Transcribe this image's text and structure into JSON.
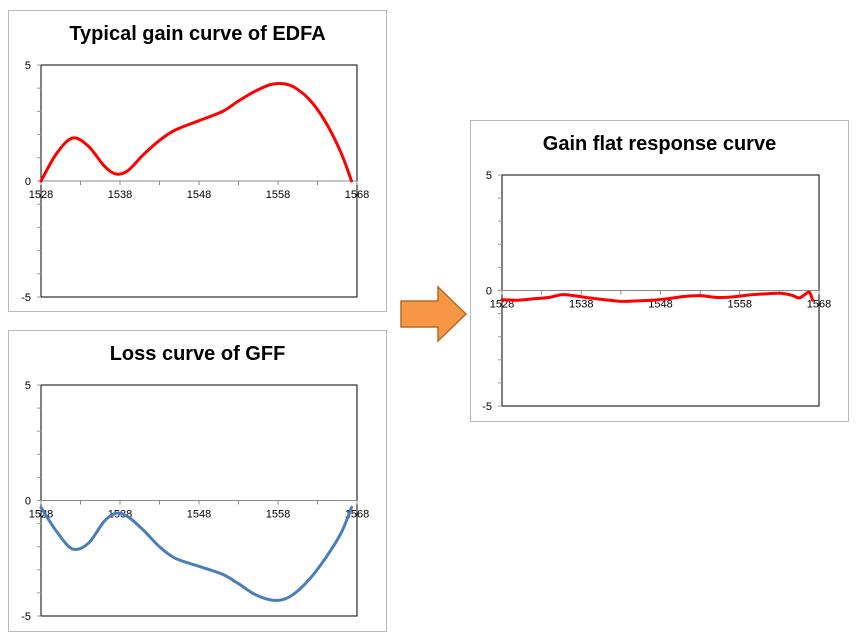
{
  "chart_data": [
    {
      "id": "edfa",
      "type": "line",
      "title": "Typical gain curve of EDFA",
      "xlim": [
        1528,
        1568
      ],
      "ylim": [
        -5,
        5
      ],
      "x_ticks": [
        1528,
        1538,
        1548,
        1558,
        1568
      ],
      "y_ticks": [
        5,
        0,
        -5
      ],
      "grid": false,
      "series": [
        {
          "color": "#ff0000",
          "x": [
            1528,
            1530,
            1532,
            1534,
            1536,
            1537.5,
            1539,
            1541,
            1543,
            1545,
            1548,
            1551,
            1553,
            1555,
            1557,
            1558.5,
            1560,
            1562,
            1564,
            1566,
            1567.3
          ],
          "y": [
            0,
            1.2,
            1.85,
            1.5,
            0.65,
            0.3,
            0.45,
            1.15,
            1.75,
            2.2,
            2.6,
            3.0,
            3.45,
            3.85,
            4.15,
            4.2,
            4.05,
            3.5,
            2.55,
            1.2,
            0
          ]
        }
      ]
    },
    {
      "id": "gff",
      "type": "line",
      "title": "Loss curve of GFF",
      "xlim": [
        1528,
        1568
      ],
      "ylim": [
        -5,
        5
      ],
      "x_ticks": [
        1528,
        1538,
        1548,
        1558,
        1568
      ],
      "y_ticks": [
        5,
        0,
        -5
      ],
      "grid": false,
      "series": [
        {
          "color": "#4a7ebb",
          "x": [
            1528,
            1530,
            1532,
            1534,
            1536,
            1537.5,
            1539,
            1541,
            1543,
            1545,
            1548,
            1551,
            1553,
            1555,
            1557,
            1558.5,
            1560,
            1562,
            1564,
            1566,
            1567.3
          ],
          "y": [
            -0.3,
            -1.35,
            -2.1,
            -1.85,
            -0.9,
            -0.55,
            -0.7,
            -1.3,
            -2.0,
            -2.5,
            -2.85,
            -3.2,
            -3.6,
            -4.05,
            -4.3,
            -4.3,
            -4.05,
            -3.4,
            -2.5,
            -1.4,
            -0.3
          ]
        }
      ]
    },
    {
      "id": "flat",
      "type": "line",
      "title": "Gain flat response curve",
      "xlim": [
        1528,
        1568
      ],
      "ylim": [
        -5,
        5
      ],
      "x_ticks": [
        1528,
        1538,
        1548,
        1558,
        1568
      ],
      "y_ticks": [
        5,
        0,
        -5
      ],
      "grid": false,
      "series": [
        {
          "color": "#ff0000",
          "x": [
            1528,
            1530,
            1532,
            1534,
            1535.5,
            1537,
            1539,
            1541,
            1543,
            1545,
            1547,
            1549,
            1551,
            1553,
            1555,
            1557,
            1559,
            1561,
            1563,
            1564.5,
            1565.5,
            1566.3,
            1566.8,
            1567.2
          ],
          "y": [
            -0.4,
            -0.42,
            -0.36,
            -0.3,
            -0.18,
            -0.22,
            -0.32,
            -0.4,
            -0.47,
            -0.45,
            -0.42,
            -0.35,
            -0.26,
            -0.22,
            -0.3,
            -0.28,
            -0.2,
            -0.15,
            -0.12,
            -0.2,
            -0.32,
            -0.15,
            -0.08,
            -0.42
          ]
        }
      ]
    }
  ],
  "colors": {
    "arrow_fill": "#f79646",
    "arrow_stroke": "#b86a24"
  },
  "icons": {
    "arrow": "right-arrow-icon"
  }
}
